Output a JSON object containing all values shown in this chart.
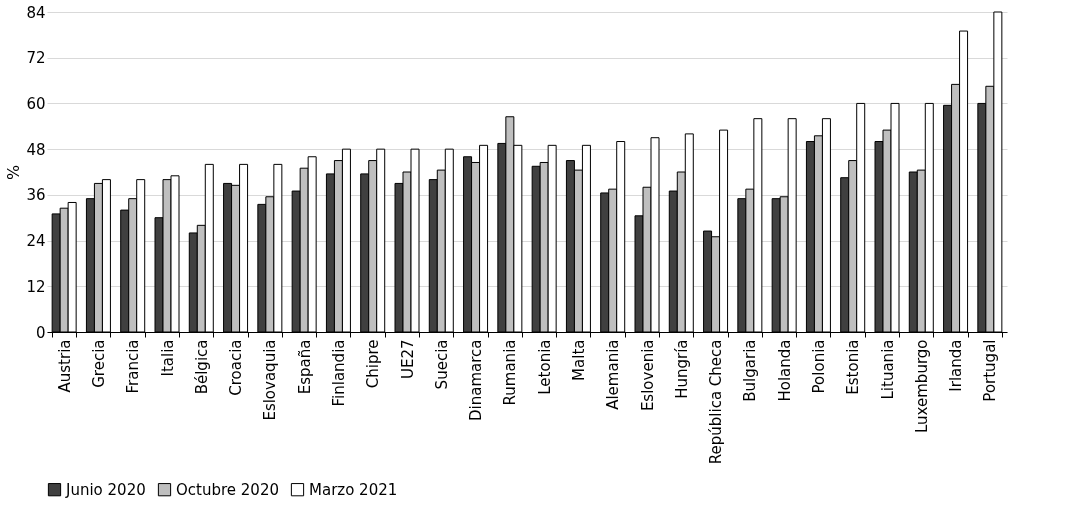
{
  "chart_data": {
    "type": "bar",
    "ylabel": "%",
    "categories": [
      "Austria",
      "Grecia",
      "Francia",
      "Italia",
      "Bélgica",
      "Croacia",
      "Eslovaquia",
      "España",
      "Finlandia",
      "Chipre",
      "UE27",
      "Suecia",
      "Dinamarca",
      "Rumania",
      "Letonia",
      "Malta",
      "Alemania",
      "Eslovenia",
      "Hungría",
      "República Checa",
      "Bulgaria",
      "Holanda",
      "Polonia",
      "Estonia",
      "Lituania",
      "Luxemburgo",
      "Irlanda",
      "Portugal"
    ],
    "series": [
      {
        "name": "Junio 2020",
        "color": "#404040",
        "values": [
          31,
          35,
          32,
          30,
          26,
          39,
          33.5,
          37,
          41.5,
          41.5,
          39,
          40,
          46,
          49.5,
          43.5,
          45,
          36.5,
          30.5,
          37,
          26.5,
          35,
          35,
          50,
          40.5,
          50,
          42,
          59.5,
          60
        ]
      },
      {
        "name": "Octubre 2020",
        "color": "#bfbfbf",
        "values": [
          32.5,
          39,
          35,
          40,
          28,
          38.5,
          35.5,
          43,
          45,
          45,
          42,
          42.5,
          44.5,
          56.5,
          44.5,
          42.5,
          37.5,
          38,
          42,
          25,
          37.5,
          35.5,
          51.5,
          45,
          53,
          42.5,
          65,
          64.5
        ]
      },
      {
        "name": "Marzo 2021",
        "color": "#ffffff",
        "values": [
          34,
          40,
          40,
          41,
          44,
          44,
          44,
          46,
          48,
          48,
          48,
          48,
          49,
          49,
          49,
          49,
          50,
          51,
          52,
          53,
          56,
          56,
          56,
          60,
          60,
          60,
          79,
          84
        ]
      }
    ],
    "ylim": [
      0,
      84
    ],
    "yticks": [
      0,
      12,
      24,
      36,
      48,
      60,
      72,
      84
    ],
    "grid": "y",
    "legend": "bottom"
  }
}
